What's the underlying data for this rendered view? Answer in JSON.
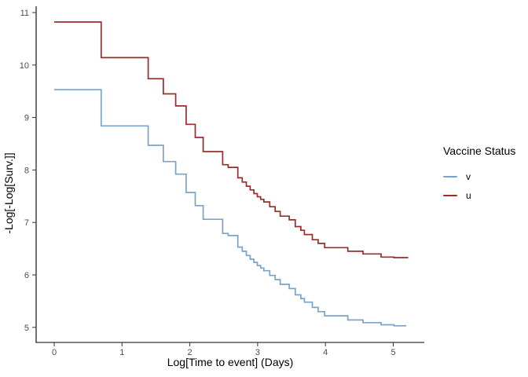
{
  "figure": {
    "title": "",
    "x_axis": {
      "title": "Log[Time to event] (Days)",
      "ticks": [
        0,
        1,
        2,
        3,
        4,
        5
      ]
    },
    "y_axis": {
      "title": "-Log[-Log[Surv.]]",
      "ticks": [
        5,
        6,
        7,
        8,
        9,
        10,
        11
      ]
    },
    "legend": {
      "title": "Vaccine Status",
      "items": [
        {
          "label": "v",
          "color": "#7AA3C9"
        },
        {
          "label": "u",
          "color": "#9E2B2B"
        }
      ]
    }
  },
  "chart_data": {
    "type": "line",
    "subtype": "step-survival-cloglog",
    "title": "",
    "xlabel": "Log[Time to event] (Days)",
    "ylabel": "-Log[-Log[Surv.]]",
    "xlim": [
      -0.27,
      5.46
    ],
    "ylim": [
      4.7,
      11.3
    ],
    "x_ticks": [
      0,
      1,
      2,
      3,
      4,
      5
    ],
    "y_ticks": [
      5,
      6,
      7,
      8,
      9,
      10,
      11
    ],
    "grid": "off",
    "legend_title": "Vaccine Status",
    "legend_position": "right",
    "x_note": "x = natural log of time in days; steps occur at log(event day)",
    "series": [
      {
        "name": "v",
        "color": "#7AA3C9",
        "start_value": 9.53,
        "end_log_x": 5.19,
        "step_times_days": [
          2,
          4,
          5,
          6,
          7,
          8,
          9,
          12,
          13,
          15,
          16,
          17,
          18,
          19,
          20,
          21,
          22,
          24,
          26,
          28,
          32,
          35,
          38,
          40,
          45,
          49,
          54,
          76,
          95,
          124,
          150
        ],
        "values": [
          8.84,
          8.47,
          8.16,
          7.92,
          7.57,
          7.32,
          7.06,
          6.79,
          6.75,
          6.53,
          6.45,
          6.37,
          6.3,
          6.24,
          6.18,
          6.13,
          6.08,
          5.99,
          5.91,
          5.82,
          5.74,
          5.62,
          5.55,
          5.48,
          5.38,
          5.3,
          5.22,
          5.14,
          5.09,
          5.05,
          5.03
        ]
      },
      {
        "name": "u",
        "color": "#9E2B2B",
        "start_value": 10.82,
        "end_log_x": 5.22,
        "step_times_days": [
          2,
          4,
          5,
          6,
          7,
          8,
          9,
          12,
          13,
          15,
          16,
          17,
          18,
          19,
          20,
          21,
          22,
          24,
          26,
          28,
          32,
          35,
          38,
          40,
          45,
          49,
          54,
          76,
          95,
          124,
          150
        ],
        "values": [
          10.14,
          9.74,
          9.45,
          9.22,
          8.87,
          8.62,
          8.35,
          8.1,
          8.05,
          7.85,
          7.77,
          7.69,
          7.62,
          7.55,
          7.49,
          7.44,
          7.39,
          7.3,
          7.21,
          7.12,
          7.05,
          6.92,
          6.85,
          6.77,
          6.67,
          6.6,
          6.52,
          6.45,
          6.4,
          6.34,
          6.33
        ]
      }
    ]
  }
}
